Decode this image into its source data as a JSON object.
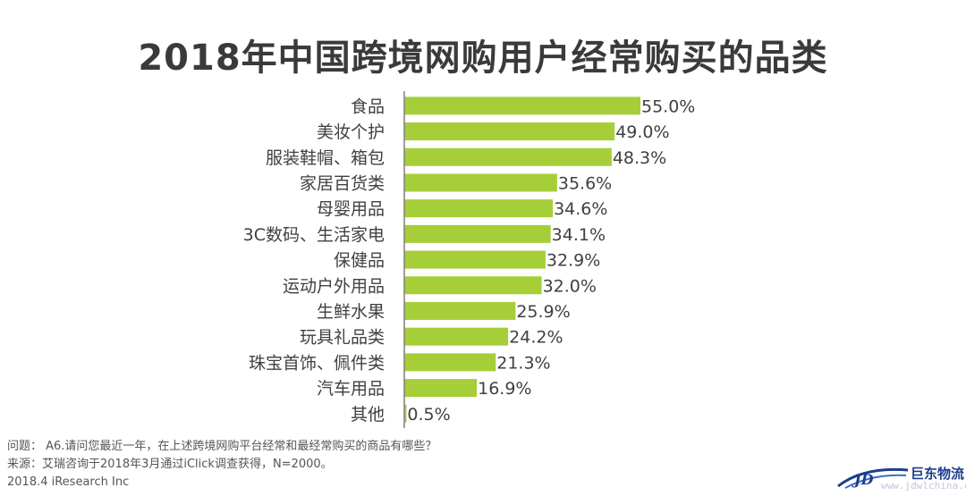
{
  "chart_data": {
    "type": "bar",
    "orientation": "horizontal",
    "title": "2018年中国跨境网购用户经常购买的品类",
    "categories": [
      "食品",
      "美妆个护",
      "服装鞋帽、箱包",
      "家居百货类",
      "母婴用品",
      "3C数码、生活家电",
      "保健品",
      "运动户外用品",
      "生鲜水果",
      "玩具礼品类",
      "珠宝首饰、佩件类",
      "汽车用品",
      "其他"
    ],
    "values": [
      55.0,
      49.0,
      48.3,
      35.6,
      34.6,
      34.1,
      32.9,
      32.0,
      25.9,
      24.2,
      21.3,
      16.9,
      0.5
    ],
    "value_labels": [
      "55.0%",
      "49.0%",
      "48.3%",
      "35.6%",
      "34.6%",
      "34.1%",
      "32.9%",
      "32.0%",
      "25.9%",
      "24.2%",
      "21.3%",
      "16.9%",
      "0.5%"
    ],
    "xlim": [
      0,
      60
    ],
    "bar_color": "#a6ce39",
    "axis_color": "#7f7f7f",
    "grid": false,
    "legend": "none"
  },
  "notes": {
    "question": "问题： A6.请问您最近一年，在上述跨境网购平台经常和最经常购买的商品有哪些？",
    "source": "来源：艾瑞咨询于2018年3月通过iClick调查获得，N=2000。",
    "footer": "2018.4 iResearch Inc"
  },
  "logo": {
    "name": "巨东物流",
    "url_text": "www.jdwlchina.cn"
  }
}
